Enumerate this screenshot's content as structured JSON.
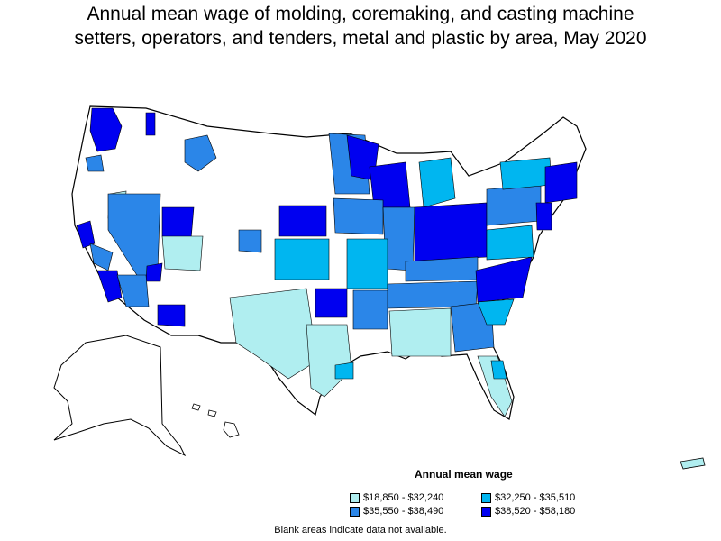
{
  "title": {
    "line1": "Annual mean wage of molding, coremaking, and casting machine",
    "line2": "setters, operators, and tenders, metal and plastic by area, May 2020"
  },
  "legend": {
    "title": "Annual mean wage",
    "items": [
      {
        "label": "$18,850 - $32,240",
        "color": "#b0eef0"
      },
      {
        "label": "$32,250 - $35,510",
        "color": "#00b6f0"
      },
      {
        "label": "$35,550 - $38,490",
        "color": "#2b86e8"
      },
      {
        "label": "$38,520 - $58,180",
        "color": "#0000f0"
      }
    ]
  },
  "footnote": "Blank areas indicate data not available.",
  "colors": {
    "blank": "#ffffff",
    "border": "#000000"
  }
}
